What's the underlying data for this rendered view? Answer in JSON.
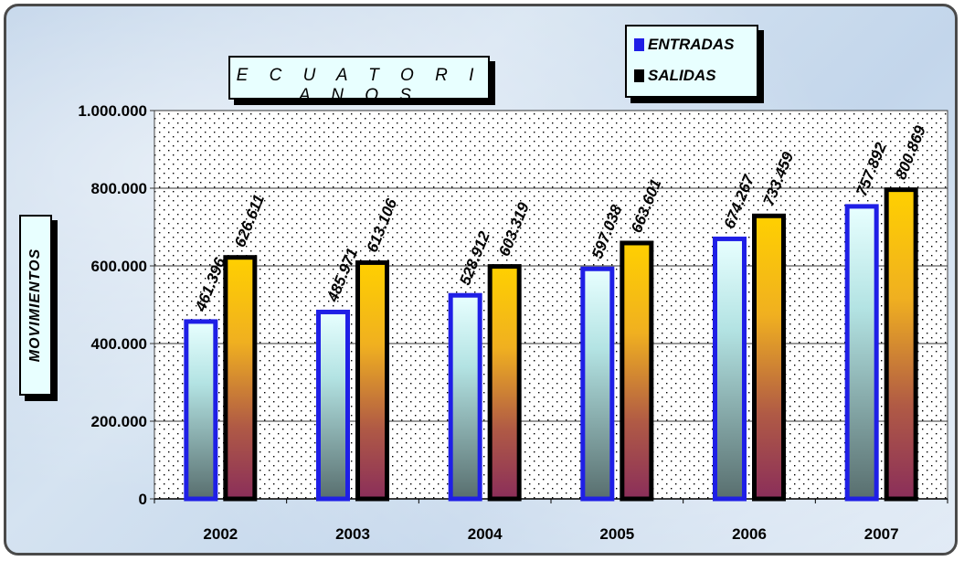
{
  "chart_data": {
    "type": "bar",
    "title": "E C U A T O R I A N O S",
    "ylabel": "MOVIMIENTOS",
    "categories": [
      "2002",
      "2003",
      "2004",
      "2005",
      "2006",
      "2007"
    ],
    "series": [
      {
        "name": "ENTRADAS",
        "values": [
          461396,
          485971,
          528912,
          597038,
          674267,
          757892
        ],
        "labels": [
          "461.396",
          "485.971",
          "528.912",
          "597.038",
          "674.267",
          "757.892"
        ]
      },
      {
        "name": "SALIDAS",
        "values": [
          626611,
          613106,
          603319,
          663601,
          733459,
          800869
        ],
        "labels": [
          "626.611",
          "613.106",
          "603.319",
          "663.601",
          "733.459",
          "800.869"
        ]
      }
    ],
    "ylim": [
      0,
      1000000
    ],
    "yticks": [
      0,
      200000,
      400000,
      600000,
      800000,
      1000000
    ],
    "ytick_labels": [
      "0",
      "200.000",
      "400.000",
      "600.000",
      "800.000",
      "1.000.000"
    ],
    "grid": true,
    "legend_position": "top-right",
    "colors": {
      "entradas_border": "#1f1fe6",
      "salidas_border": "#000000"
    }
  }
}
